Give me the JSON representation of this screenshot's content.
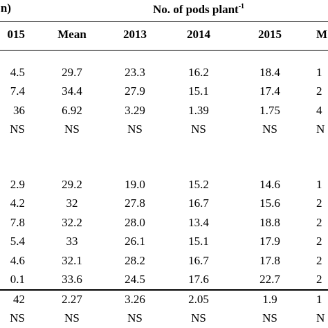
{
  "header": {
    "left": "n)",
    "title": "No. of pods plant",
    "title_sup": "-1"
  },
  "columns": [
    "015",
    "Mean",
    "2013",
    "2014",
    "2015",
    "M"
  ],
  "groups": [
    {
      "rows": [
        [
          "4.5",
          "29.7",
          "23.3",
          "16.2",
          "18.4",
          "1"
        ],
        [
          "7.4",
          "34.4",
          "27.9",
          "15.1",
          "17.4",
          "2"
        ],
        [
          "36",
          "6.92",
          "3.29",
          "1.39",
          "1.75",
          "4"
        ],
        [
          "NS",
          "NS",
          "NS",
          "NS",
          "NS",
          "N"
        ]
      ]
    },
    {
      "rows": [
        [
          "2.9",
          "29.2",
          "19.0",
          "15.2",
          "14.6",
          "1"
        ],
        [
          "4.2",
          "32",
          "27.8",
          "16.7",
          "15.6",
          "2"
        ],
        [
          "7.8",
          "32.2",
          "28.0",
          "13.4",
          "18.8",
          "2"
        ],
        [
          "5.4",
          "33",
          "26.1",
          "15.1",
          "17.9",
          "2"
        ],
        [
          "4.6",
          "32.1",
          "28.2",
          "16.7",
          "17.8",
          "2"
        ],
        [
          "0.1",
          "33.6",
          "24.5",
          "17.6",
          "22.7",
          "2"
        ]
      ]
    },
    {
      "rows": [
        [
          "42",
          "2.27",
          "3.26",
          "2.05",
          "1.9",
          "1"
        ],
        [
          "NS",
          "NS",
          "NS",
          "NS",
          "NS",
          "N"
        ]
      ]
    }
  ]
}
